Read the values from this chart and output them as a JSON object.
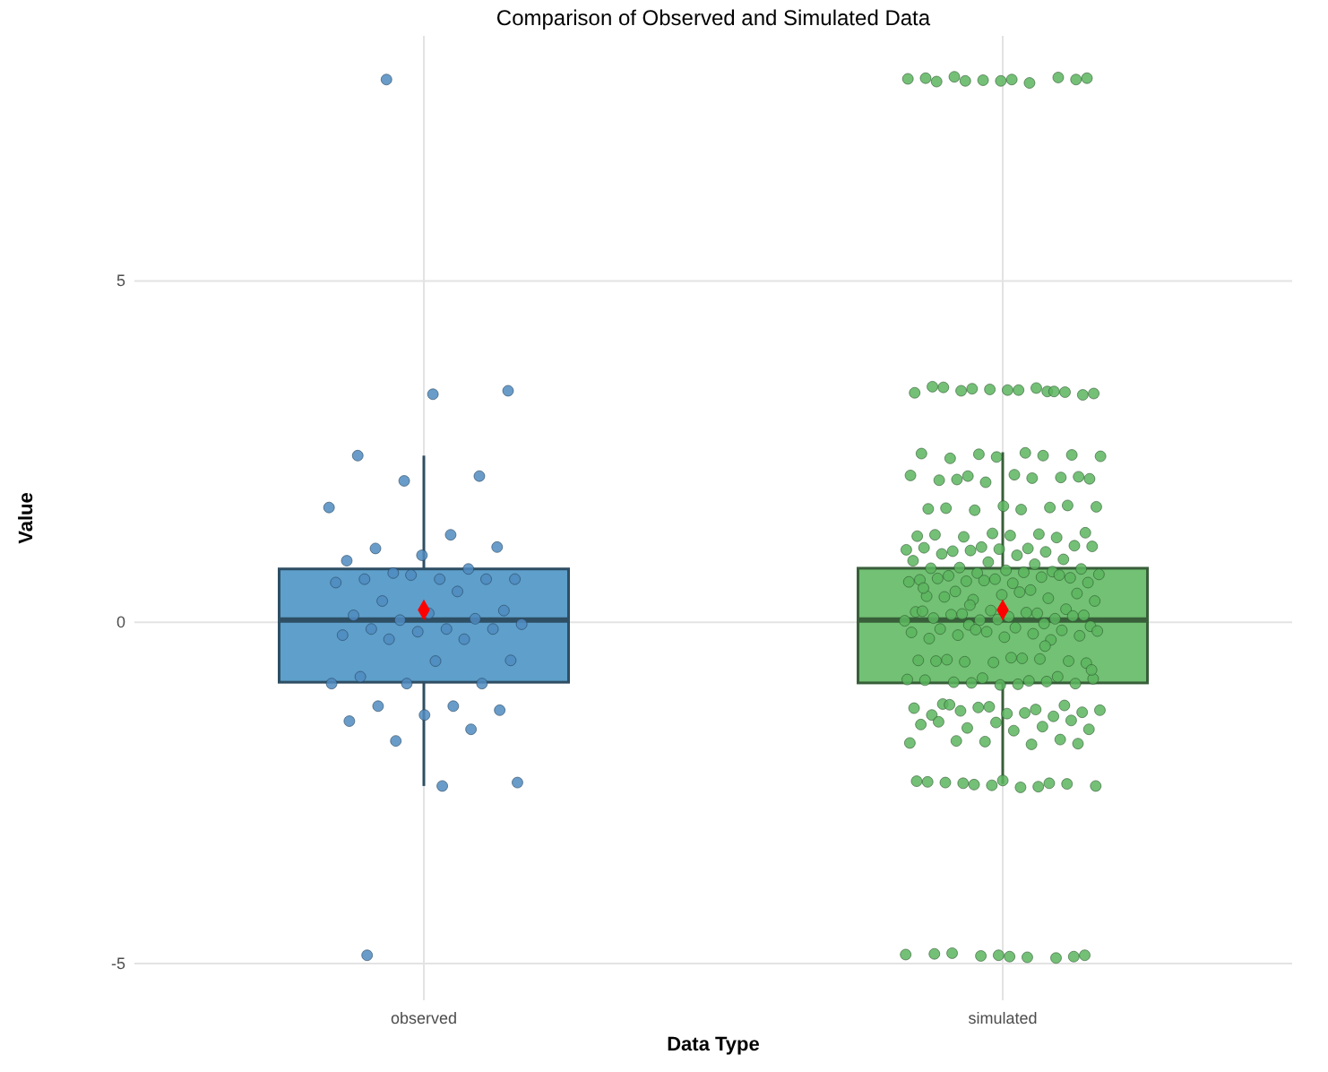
{
  "chart_data": {
    "type": "box",
    "title": "Comparison of Observed and Simulated Data",
    "xlabel": "Data Type",
    "ylabel": "Value",
    "categories": [
      "observed",
      "simulated"
    ],
    "boxes": [
      {
        "low": -2.4,
        "q1": -0.88,
        "median": 0.03,
        "q3": 0.78,
        "high": 2.44,
        "mean": 0.18
      },
      {
        "low": -2.37,
        "q1": -0.89,
        "median": 0.03,
        "q3": 0.79,
        "high": 2.49,
        "mean": 0.18
      }
    ],
    "colors": [
      "#5e9fcb",
      "#72c174"
    ],
    "ylim": [
      -5.54,
      8.59
    ],
    "yticks": [
      -5,
      0,
      5
    ],
    "grid": true,
    "series": [
      {
        "type": "scatter",
        "color": "#4f8bc0",
        "x": [
          "observed",
          "observed",
          "observed",
          "observed",
          "observed",
          "observed",
          "observed",
          "observed",
          "observed",
          "observed",
          "observed",
          "observed",
          "observed",
          "observed",
          "observed",
          "observed",
          "observed",
          "observed",
          "observed",
          "observed",
          "observed",
          "observed",
          "observed",
          "observed",
          "observed",
          "observed",
          "observed",
          "observed",
          "observed",
          "observed",
          "observed",
          "observed",
          "observed",
          "observed",
          "observed",
          "observed",
          "observed",
          "observed",
          "observed",
          "observed",
          "observed",
          "observed",
          "observed",
          "observed",
          "observed",
          "observed",
          "observed",
          "observed",
          "observed",
          "observed",
          "observed"
        ],
        "values": [
          7.95,
          3.39,
          3.34,
          2.44,
          2.14,
          2.07,
          1.68,
          1.28,
          1.08,
          1.1,
          0.98,
          0.9,
          0.78,
          0.72,
          0.63,
          0.63,
          0.63,
          0.63,
          0.69,
          0.58,
          0.45,
          0.31,
          0.17,
          0.13,
          0.1,
          0.05,
          0.03,
          -0.03,
          -0.1,
          -0.1,
          -0.1,
          -0.14,
          -0.19,
          -0.25,
          -0.25,
          -0.56,
          -0.57,
          -0.8,
          -0.9,
          -0.9,
          -0.9,
          -1.23,
          -1.23,
          -1.29,
          -1.36,
          -1.45,
          -1.57,
          -1.74,
          -2.35,
          -2.4,
          -4.88
        ]
      },
      {
        "type": "scatter",
        "color": "#5cb55f",
        "x": [
          "simulated",
          "simulated",
          "simulated",
          "simulated",
          "simulated",
          "simulated",
          "simulated",
          "simulated",
          "simulated",
          "simulated",
          "simulated",
          "simulated",
          "simulated",
          "simulated",
          "simulated",
          "simulated",
          "simulated",
          "simulated",
          "simulated",
          "simulated",
          "simulated",
          "simulated",
          "simulated",
          "simulated",
          "simulated",
          "simulated",
          "simulated",
          "simulated",
          "simulated",
          "simulated",
          "simulated",
          "simulated",
          "simulated",
          "simulated",
          "simulated",
          "simulated",
          "simulated",
          "simulated",
          "simulated",
          "simulated",
          "simulated",
          "simulated",
          "simulated",
          "simulated",
          "simulated",
          "simulated",
          "simulated",
          "simulated",
          "simulated",
          "simulated",
          "simulated",
          "simulated",
          "simulated",
          "simulated",
          "simulated",
          "simulated",
          "simulated",
          "simulated",
          "simulated",
          "simulated",
          "simulated",
          "simulated",
          "simulated",
          "simulated",
          "simulated",
          "simulated",
          "simulated",
          "simulated",
          "simulated",
          "simulated",
          "simulated",
          "simulated",
          "simulated",
          "simulated",
          "simulated",
          "simulated",
          "simulated",
          "simulated",
          "simulated",
          "simulated",
          "simulated",
          "simulated",
          "simulated",
          "simulated",
          "simulated",
          "simulated",
          "simulated",
          "simulated",
          "simulated",
          "simulated",
          "simulated",
          "simulated",
          "simulated",
          "simulated",
          "simulated",
          "simulated",
          "simulated",
          "simulated",
          "simulated",
          "simulated",
          "simulated",
          "simulated",
          "simulated",
          "simulated",
          "simulated",
          "simulated",
          "simulated",
          "simulated",
          "simulated",
          "simulated",
          "simulated",
          "simulated",
          "simulated",
          "simulated",
          "simulated",
          "simulated",
          "simulated",
          "simulated",
          "simulated",
          "simulated",
          "simulated",
          "simulated",
          "simulated",
          "simulated",
          "simulated",
          "simulated",
          "simulated",
          "simulated",
          "simulated",
          "simulated",
          "simulated",
          "simulated",
          "simulated",
          "simulated",
          "simulated",
          "simulated",
          "simulated",
          "simulated",
          "simulated",
          "simulated",
          "simulated",
          "simulated",
          "simulated",
          "simulated",
          "simulated",
          "simulated",
          "simulated",
          "simulated",
          "simulated",
          "simulated",
          "simulated",
          "simulated",
          "simulated",
          "simulated",
          "simulated",
          "simulated",
          "simulated",
          "simulated",
          "simulated",
          "simulated",
          "simulated",
          "simulated",
          "simulated",
          "simulated",
          "simulated",
          "simulated",
          "simulated",
          "simulated",
          "simulated",
          "simulated",
          "simulated",
          "simulated",
          "simulated",
          "simulated",
          "simulated",
          "simulated",
          "simulated",
          "simulated",
          "simulated",
          "simulated",
          "simulated",
          "simulated",
          "simulated",
          "simulated",
          "simulated",
          "simulated",
          "simulated",
          "simulated",
          "simulated",
          "simulated",
          "simulated",
          "simulated",
          "simulated",
          "simulated",
          "simulated",
          "simulated",
          "simulated",
          "simulated",
          "simulated",
          "simulated",
          "simulated",
          "simulated",
          "simulated",
          "simulated",
          "simulated",
          "simulated",
          "simulated",
          "simulated",
          "simulated",
          "simulated",
          "simulated",
          "simulated",
          "simulated",
          "simulated"
        ],
        "values": [
          7.93,
          7.97,
          7.95,
          7.92,
          7.98,
          7.94,
          7.96,
          7.9,
          7.99,
          7.95,
          7.93,
          7.97,
          3.38,
          3.42,
          3.35,
          3.4,
          3.44,
          3.37,
          3.41,
          3.36,
          3.43,
          3.39,
          3.33,
          3.4,
          3.45,
          3.38,
          2.46,
          2.43,
          2.48,
          2.4,
          2.45,
          2.42,
          2.47,
          2.44,
          2.14,
          2.1,
          2.16,
          2.08,
          2.12,
          2.05,
          2.15,
          2.11,
          2.09,
          2.13,
          1.7,
          1.66,
          1.68,
          1.64,
          1.69,
          1.65,
          1.67,
          1.71,
          1.3,
          1.26,
          1.29,
          1.25,
          1.31,
          1.27,
          1.28,
          1.24,
          1.1,
          1.06,
          1.08,
          1.04,
          1.12,
          1.07,
          1.09,
          1.03,
          1.05,
          1.11,
          0.98,
          1.0,
          0.92,
          0.88,
          0.9,
          0.85,
          0.8,
          0.78,
          0.76,
          0.79,
          0.74,
          0.72,
          0.7,
          0.73,
          0.68,
          0.65,
          0.63,
          0.62,
          0.66,
          0.6,
          0.58,
          0.57,
          0.64,
          0.69,
          0.61,
          0.59,
          0.47,
          0.45,
          0.42,
          0.4,
          0.38,
          0.35,
          0.33,
          0.31,
          0.44,
          0.37,
          0.19,
          0.17,
          0.15,
          0.13,
          0.12,
          0.1,
          0.08,
          0.06,
          0.05,
          0.03,
          0.02,
          0.14,
          0.11,
          0.09,
          0.04,
          0.16,
          -0.02,
          -0.04,
          -0.06,
          -0.08,
          -0.1,
          -0.12,
          -0.14,
          -0.15,
          -0.17,
          -0.19,
          -0.2,
          -0.22,
          -0.24,
          -0.26,
          -0.11,
          -0.13,
          -0.53,
          -0.55,
          -0.57,
          -0.59,
          -0.56,
          -0.54,
          -0.58,
          -0.6,
          -0.52,
          -0.57,
          -0.8,
          -0.82,
          -0.84,
          -0.86,
          -0.88,
          -0.9,
          -0.92,
          -0.85,
          -0.87,
          -0.89,
          -0.83,
          -0.91,
          -1.2,
          -1.22,
          -1.24,
          -1.26,
          -1.28,
          -1.3,
          -1.32,
          -1.34,
          -1.36,
          -1.38,
          -1.25,
          -1.29,
          -1.33,
          -1.21,
          -1.44,
          -1.47,
          -1.5,
          -1.53,
          -1.55,
          -1.57,
          -1.59,
          -1.46,
          -1.72,
          -1.75,
          -1.77,
          -1.79,
          -1.74,
          -1.78,
          -2.32,
          -2.34,
          -2.36,
          -2.38,
          -2.4,
          -2.42,
          -2.35,
          -2.37,
          -2.39,
          -2.33,
          -2.41,
          -2.36,
          -4.88,
          -4.9,
          -4.86,
          -4.92,
          -4.89,
          -4.87,
          -4.91,
          -4.85,
          -4.9,
          -4.88,
          0.5,
          -0.35,
          0.25,
          -0.7
        ]
      }
    ]
  }
}
